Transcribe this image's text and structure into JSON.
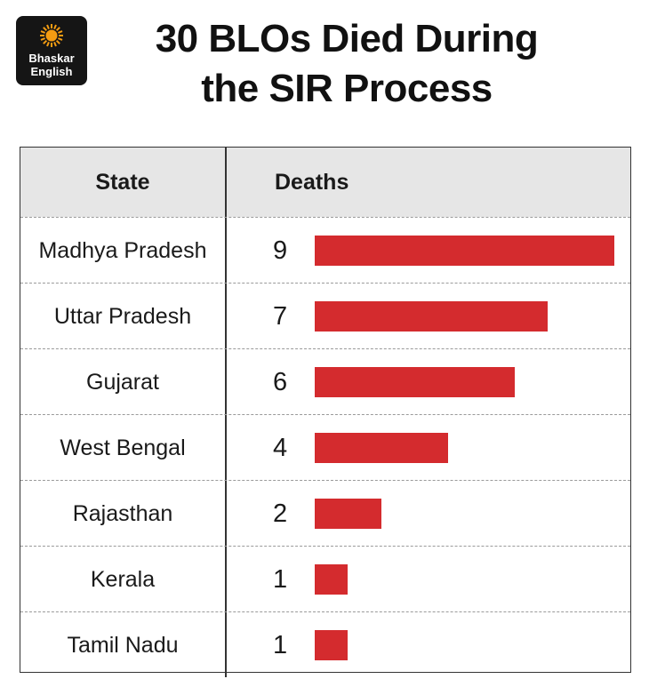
{
  "brand": {
    "line1": "Bhaskar",
    "line2": "English"
  },
  "title_lines": [
    "30 BLOs Died During",
    "the SIR Process"
  ],
  "colors": {
    "bar": "#d42b2e",
    "header_bg": "#e6e6e6",
    "logo_bg": "#151515",
    "logo_sun": "#f39c12"
  },
  "chart_data": {
    "type": "bar",
    "orientation": "horizontal",
    "title": "30 BLOs Died During the SIR Process",
    "columns": [
      "State",
      "Deaths"
    ],
    "categories": [
      "Madhya Pradesh",
      "Uttar Pradesh",
      "Gujarat",
      "West Bengal",
      "Rajasthan",
      "Kerala",
      "Tamil Nadu"
    ],
    "values": [
      9,
      7,
      6,
      4,
      2,
      1,
      1
    ],
    "xlim": [
      0,
      9
    ]
  }
}
